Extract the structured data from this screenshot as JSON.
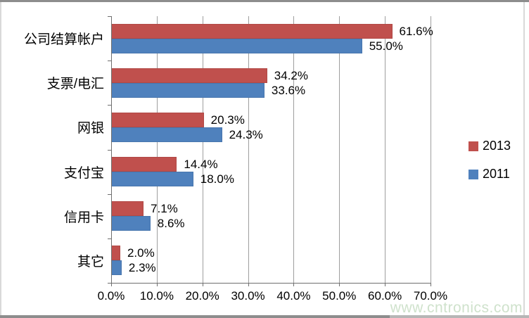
{
  "chart_data": {
    "type": "bar",
    "orientation": "horizontal",
    "title": "",
    "xlabel": "",
    "ylabel": "",
    "categories": [
      "公司结算帐户",
      "支票/电汇",
      "网银",
      "支付宝",
      "信用卡",
      "其它"
    ],
    "series": [
      {
        "name": "2013",
        "color": "#C0504D",
        "values": [
          61.6,
          34.2,
          20.3,
          14.4,
          7.1,
          2.0
        ],
        "data_labels": [
          "61.6%",
          "34.2%",
          "20.3%",
          "14.4%",
          "7.1%",
          "2.0%"
        ]
      },
      {
        "name": "2011",
        "color": "#4F81BD",
        "values": [
          55.0,
          33.6,
          24.3,
          18.0,
          8.6,
          2.3
        ],
        "data_labels": [
          "55.0%",
          "33.6%",
          "24.3%",
          "18.0%",
          "8.6%",
          "2.3%"
        ]
      }
    ],
    "xlim": [
      0,
      70
    ],
    "x_tick_step": 10,
    "x_tick_labels": [
      "0.0%",
      "10.0%",
      "20.0%",
      "30.0%",
      "40.0%",
      "50.0%",
      "60.0%",
      "70.0%"
    ],
    "grid": true,
    "legend_position": "right"
  },
  "legend": {
    "items": [
      {
        "label": "2013",
        "color": "#C0504D"
      },
      {
        "label": "2011",
        "color": "#4F81BD"
      }
    ]
  },
  "watermark": {
    "text": "www.cntronics.com",
    "color": "#cfe2cc"
  },
  "colors": {
    "series_2013": "#C0504D",
    "series_2011": "#4F81BD",
    "gridline": "#9e9e9e",
    "axis": "#6f6f6f",
    "frame": "#8d8d8d",
    "watermark": "#cfe2cc"
  }
}
